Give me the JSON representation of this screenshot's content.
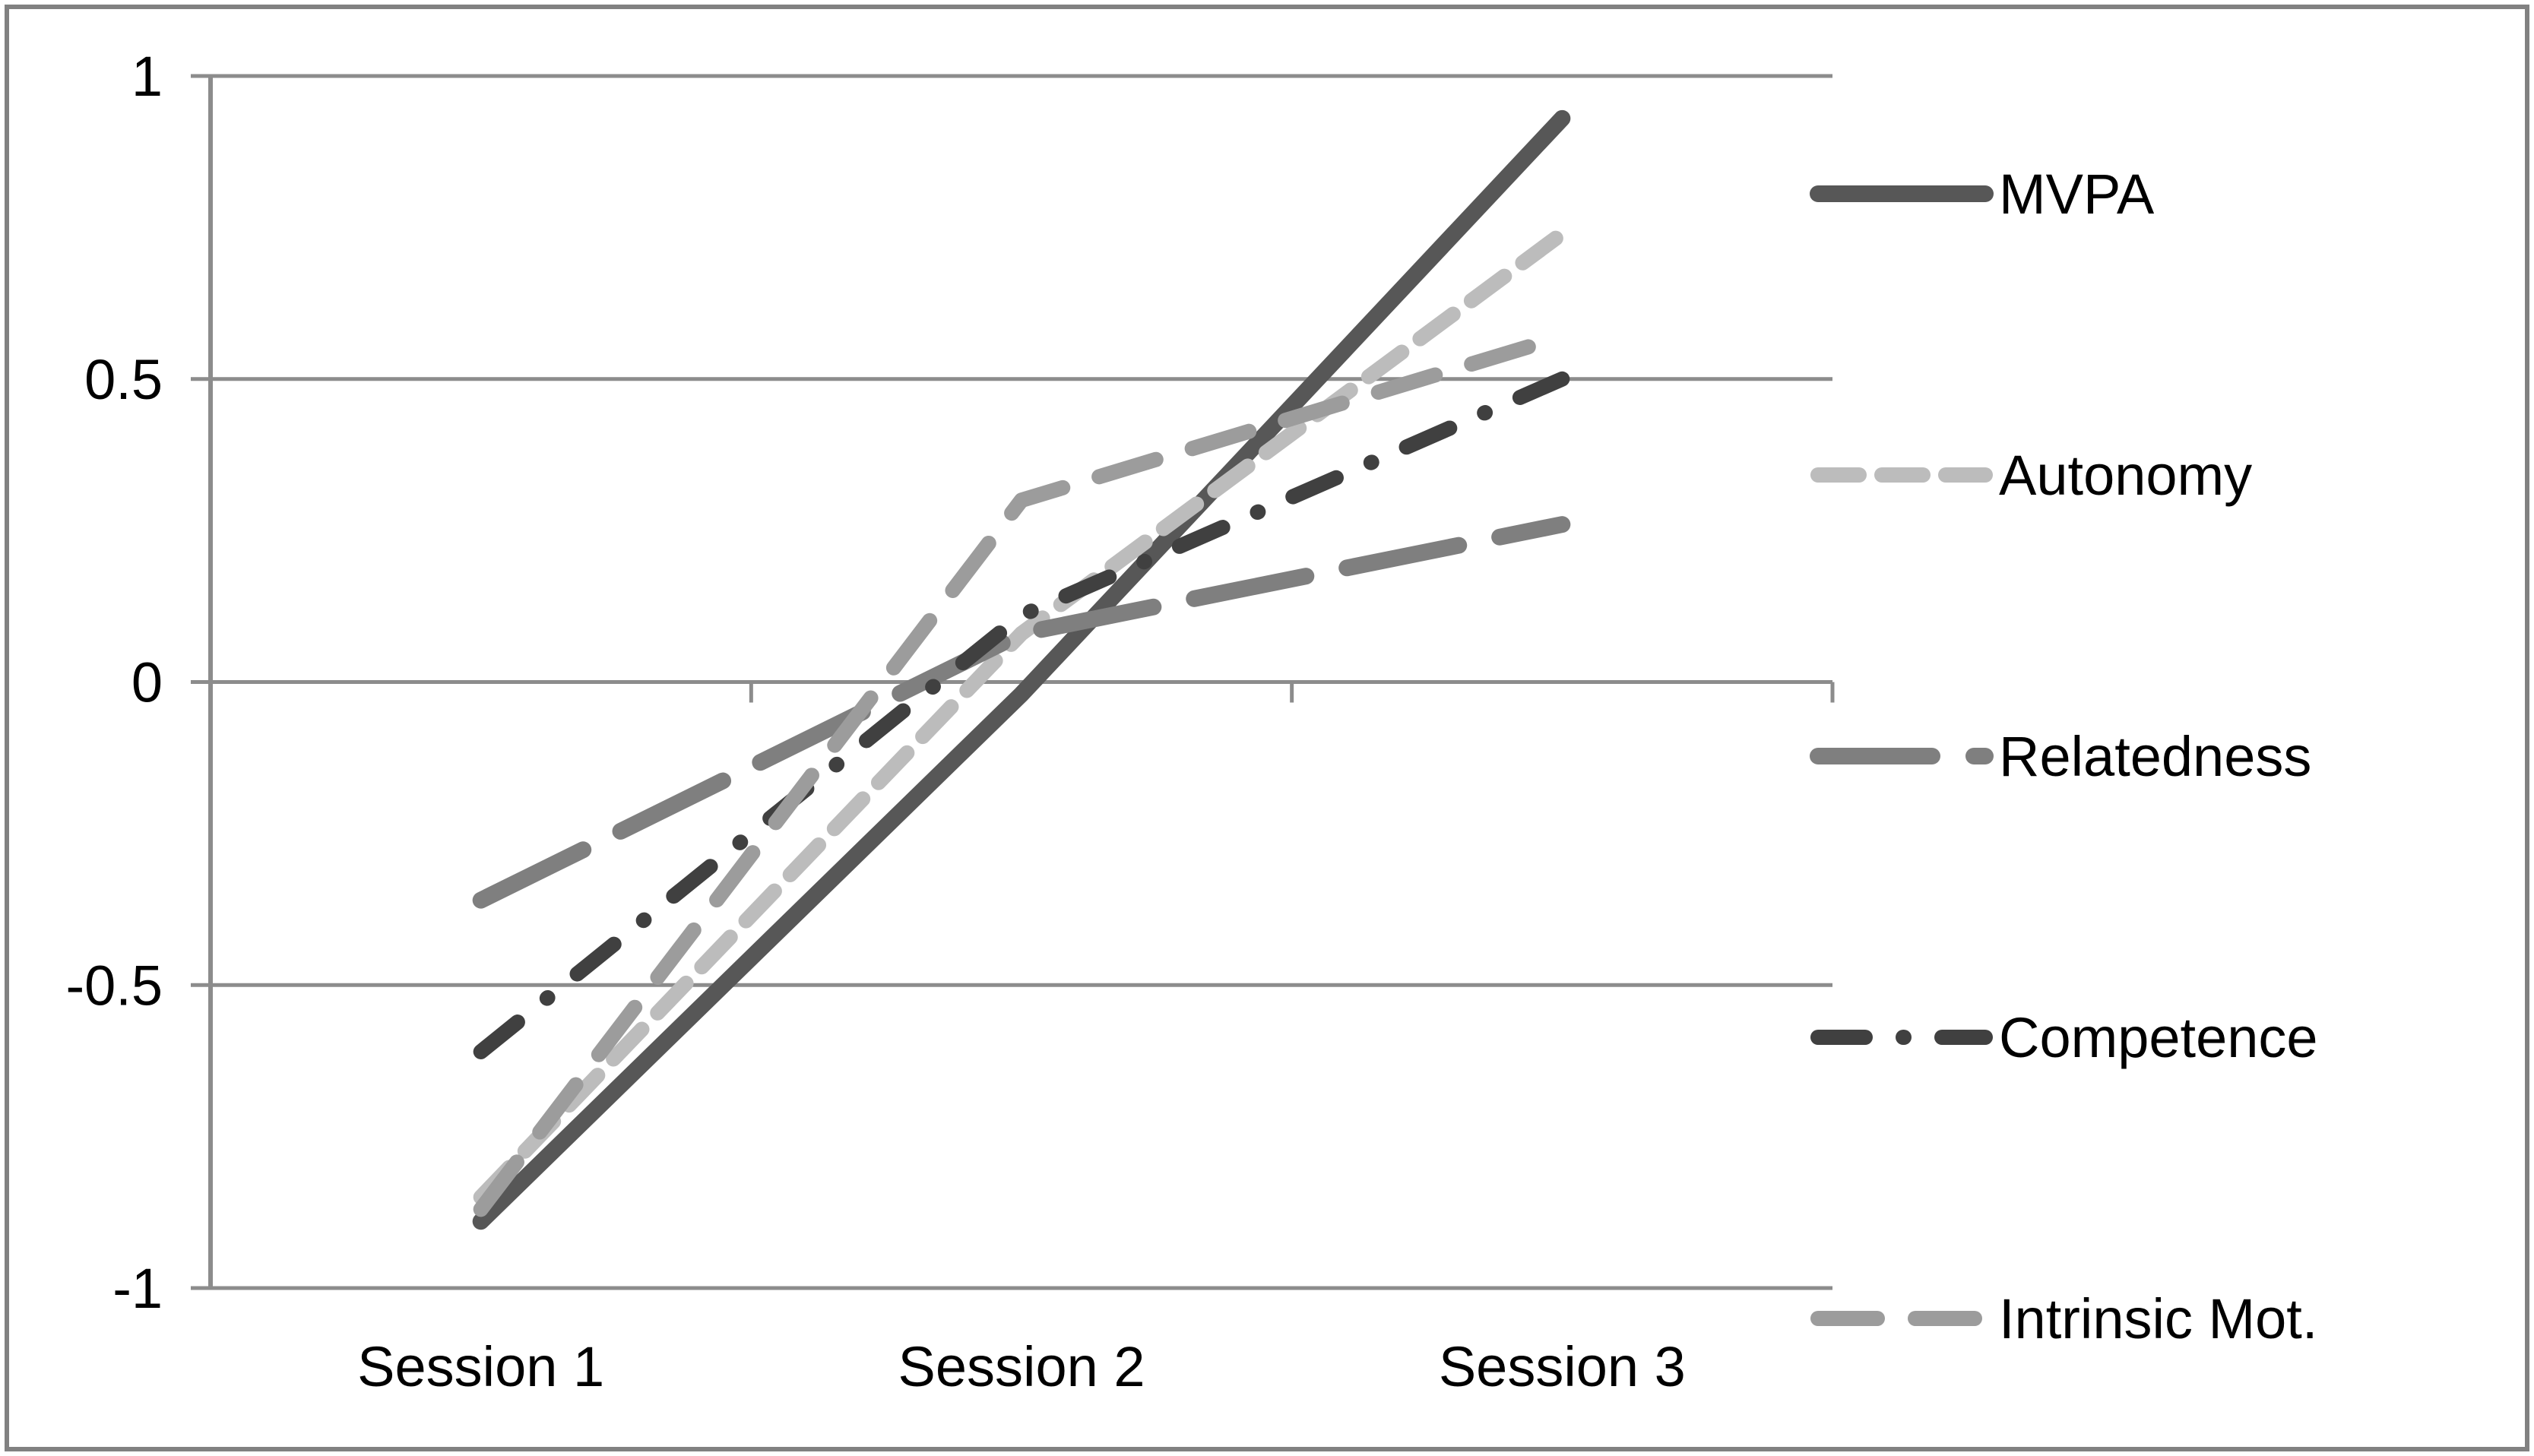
{
  "chart_data": {
    "type": "line",
    "categories": [
      "Session 1",
      "Session 2",
      "Session 3"
    ],
    "series": [
      {
        "name": "MVPA",
        "values": [
          -0.89,
          -0.02,
          0.93
        ],
        "color": "#575757",
        "style": "solid",
        "dash": null,
        "stroke_width": 22
      },
      {
        "name": "Autonomy",
        "values": [
          -0.85,
          0.08,
          0.74
        ],
        "color": "#bcbcbc",
        "style": "dash",
        "dash": [
          54,
          30
        ],
        "stroke_width": 20
      },
      {
        "name": "Relatedness",
        "values": [
          -0.36,
          0.08,
          0.26
        ],
        "color": "#7f7f7f",
        "style": "long-dash",
        "dash": [
          150,
          55
        ],
        "stroke_width": 22
      },
      {
        "name": "Competence",
        "values": [
          -0.61,
          0.11,
          0.5
        ],
        "color": "#404040",
        "style": "dash-dot",
        "dash": [
          62,
          50,
          1,
          50
        ],
        "stroke_width": 20
      },
      {
        "name": "Intrinsic Mot.",
        "values": [
          -0.87,
          0.3,
          0.57
        ],
        "color": "#9c9c9c",
        "style": "dash",
        "dash": [
          78,
          50
        ],
        "stroke_width": 20
      }
    ],
    "title": "",
    "xlabel": "",
    "ylabel": "",
    "ylim": [
      -1,
      1
    ],
    "yticks": [
      1,
      0.5,
      0,
      -0.5,
      -1
    ],
    "ytick_labels": [
      "1",
      "0.5",
      "0",
      "-0.5",
      "-1"
    ],
    "grid": true,
    "legend_position": "right"
  },
  "colors": {
    "background": "#ffffff",
    "frame_border": "#818181",
    "gridline": "#8c8c8c",
    "axis": "#8c8c8c",
    "tick": "#8c8c8c",
    "text": "#000000"
  }
}
